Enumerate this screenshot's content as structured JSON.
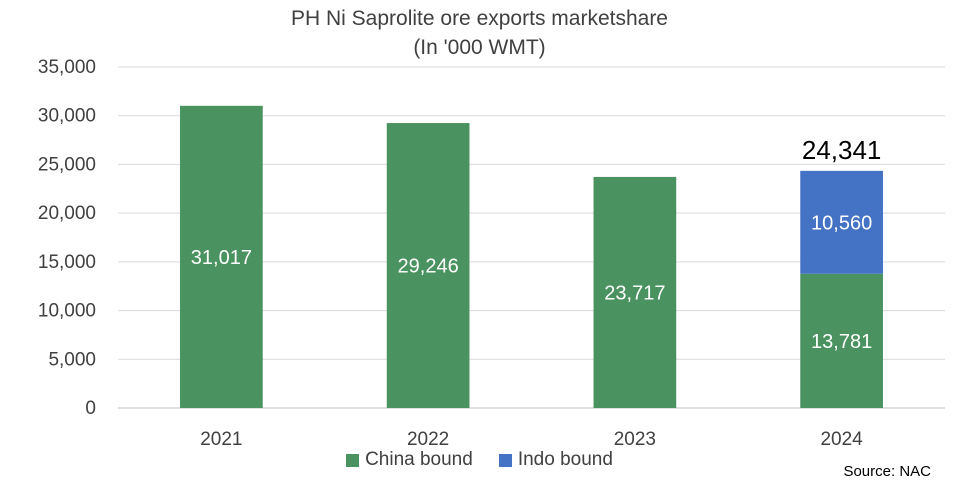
{
  "chart_data": {
    "type": "bar",
    "stacked": true,
    "title": "PH Ni Saprolite ore exports marketshare",
    "subtitle": "(In '000 WMT)",
    "categories": [
      "2021",
      "2022",
      "2023",
      "2024"
    ],
    "series": [
      {
        "name": "China bound",
        "values": [
          31017,
          29246,
          23717,
          13781
        ],
        "color": "#4a9360",
        "labels": [
          "31,017",
          "29,246",
          "23,717",
          "13,781"
        ]
      },
      {
        "name": "Indo bound",
        "values": [
          0,
          0,
          0,
          10560
        ],
        "color": "#4472c4",
        "labels": [
          "",
          "",
          "",
          "10,560"
        ]
      }
    ],
    "totals": [
      {
        "category": "2024",
        "label": "24,341"
      }
    ],
    "ylim": [
      0,
      35000
    ],
    "yticks": [
      0,
      5000,
      10000,
      15000,
      20000,
      25000,
      30000,
      35000
    ],
    "ytick_labels": [
      "0",
      "5,000",
      "10,000",
      "15,000",
      "20,000",
      "25,000",
      "30,000",
      "35,000"
    ],
    "grid": true,
    "legend_position": "bottom",
    "source": "Source: NAC"
  }
}
